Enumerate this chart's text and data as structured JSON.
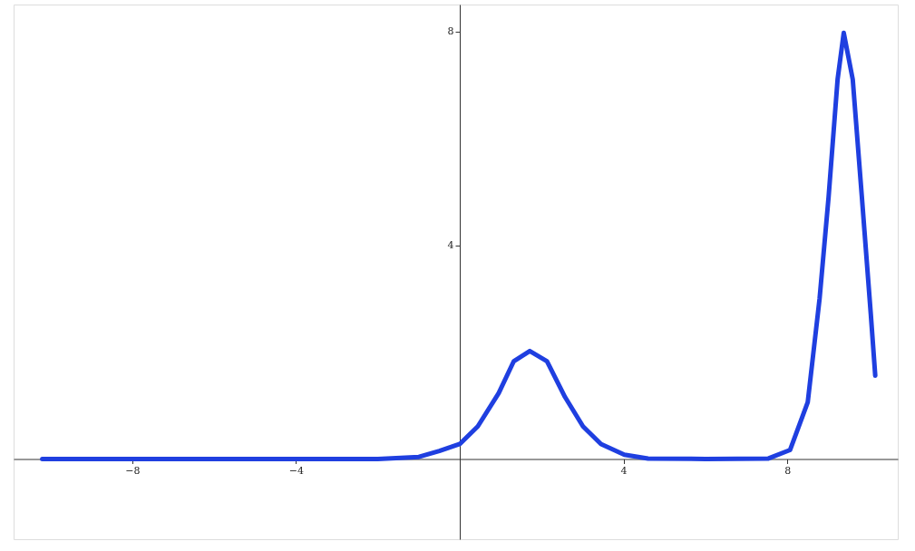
{
  "chart_data": {
    "type": "line",
    "x": [
      -10.2,
      -6,
      -2,
      -1.0,
      -0.5,
      0,
      0.44,
      0.95,
      1.32,
      1.71,
      2.13,
      2.57,
      3.01,
      3.45,
      4.02,
      4.6,
      6,
      7.54,
      8.07,
      8.5,
      8.79,
      9.01,
      9.23,
      9.38,
      9.6,
      9.82,
      10.04,
      10.15
    ],
    "series": [
      {
        "color": "#1f3fe0",
        "values": [
          0,
          0,
          0,
          0.04,
          0.15,
          0.28,
          0.61,
          1.23,
          1.83,
          2.02,
          1.83,
          1.16,
          0.61,
          0.28,
          0.08,
          0.01,
          0,
          0.01,
          0.17,
          1.06,
          3.0,
          4.9,
          7.1,
          7.97,
          7.1,
          4.93,
          2.72,
          1.56
        ]
      }
    ],
    "xlim": [
      -10.9,
      10.7
    ],
    "ylim": [
      -1.5,
      8.5
    ],
    "xticks": [
      -8,
      -4,
      4,
      8
    ],
    "yticks": [
      4,
      8
    ],
    "grid": false,
    "marker": "none",
    "line_style": "solid"
  }
}
